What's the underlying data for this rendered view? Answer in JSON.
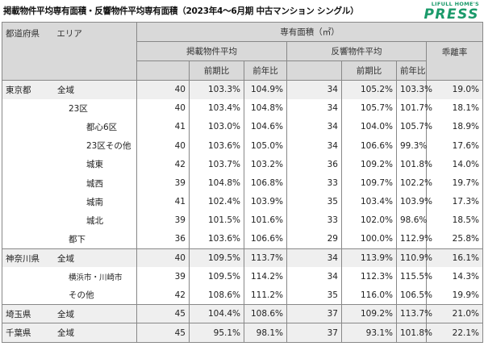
{
  "title": "掲載物件平均専有面積・反響物件平均専有面積（2023年4～6月期 中古マンション シングル）",
  "logo": {
    "top": "LIFULL HOME'S",
    "main": "PRESS"
  },
  "headers": {
    "pref": "都道府県",
    "area": "エリア",
    "main": "専有面積（㎡）",
    "listed": "掲載物件平均",
    "response": "反響物件平均",
    "divergence": "乖離率",
    "qoq": "前期比",
    "yoy": "前年比"
  },
  "rows": [
    {
      "pref": "東京都",
      "area": "全域",
      "level": 0,
      "listed": "40",
      "l_qoq": "103.3%",
      "l_yoy": "104.9%",
      "resp": "34",
      "r_qoq": "105.2%",
      "r_yoy": "103.3%",
      "div": "19.0%"
    },
    {
      "pref": "",
      "area": "23区",
      "level": 1,
      "listed": "40",
      "l_qoq": "103.4%",
      "l_yoy": "104.8%",
      "resp": "34",
      "r_qoq": "105.7%",
      "r_yoy": "101.7%",
      "div": "18.1%"
    },
    {
      "pref": "",
      "area": "都心6区",
      "level": 2,
      "listed": "41",
      "l_qoq": "103.0%",
      "l_yoy": "104.6%",
      "resp": "34",
      "r_qoq": "104.0%",
      "r_yoy": "105.7%",
      "div": "18.9%"
    },
    {
      "pref": "",
      "area": "23区その他",
      "level": 2,
      "listed": "40",
      "l_qoq": "103.6%",
      "l_yoy": "105.0%",
      "resp": "34",
      "r_qoq": "106.6%",
      "r_yoy": "99.3%",
      "div": "17.6%"
    },
    {
      "pref": "",
      "area": "城東",
      "level": 2,
      "listed": "42",
      "l_qoq": "103.7%",
      "l_yoy": "103.2%",
      "resp": "36",
      "r_qoq": "109.2%",
      "r_yoy": "101.8%",
      "div": "14.0%"
    },
    {
      "pref": "",
      "area": "城西",
      "level": 2,
      "listed": "39",
      "l_qoq": "104.8%",
      "l_yoy": "106.8%",
      "resp": "33",
      "r_qoq": "109.7%",
      "r_yoy": "102.2%",
      "div": "19.7%"
    },
    {
      "pref": "",
      "area": "城南",
      "level": 2,
      "listed": "41",
      "l_qoq": "102.4%",
      "l_yoy": "103.9%",
      "resp": "35",
      "r_qoq": "103.4%",
      "r_yoy": "103.9%",
      "div": "17.3%"
    },
    {
      "pref": "",
      "area": "城北",
      "level": 2,
      "listed": "39",
      "l_qoq": "101.5%",
      "l_yoy": "101.6%",
      "resp": "33",
      "r_qoq": "102.0%",
      "r_yoy": "98.6%",
      "div": "18.5%"
    },
    {
      "pref": "",
      "area": "都下",
      "level": 1,
      "listed": "36",
      "l_qoq": "103.6%",
      "l_yoy": "106.6%",
      "resp": "29",
      "r_qoq": "100.0%",
      "r_yoy": "112.9%",
      "div": "25.8%"
    },
    {
      "pref": "神奈川県",
      "area": "全域",
      "level": 0,
      "listed": "40",
      "l_qoq": "109.5%",
      "l_yoy": "113.7%",
      "resp": "34",
      "r_qoq": "113.9%",
      "r_yoy": "110.9%",
      "div": "16.1%"
    },
    {
      "pref": "",
      "area": "横浜市・川崎市",
      "level": 1,
      "listed": "39",
      "l_qoq": "109.5%",
      "l_yoy": "114.2%",
      "resp": "34",
      "r_qoq": "112.3%",
      "r_yoy": "115.5%",
      "div": "14.3%"
    },
    {
      "pref": "",
      "area": "その他",
      "level": 1,
      "listed": "42",
      "l_qoq": "108.6%",
      "l_yoy": "111.2%",
      "resp": "35",
      "r_qoq": "116.0%",
      "r_yoy": "106.5%",
      "div": "19.9%"
    },
    {
      "pref": "埼玉県",
      "area": "全域",
      "level": 0,
      "listed": "45",
      "l_qoq": "104.4%",
      "l_yoy": "108.6%",
      "resp": "37",
      "r_qoq": "109.2%",
      "r_yoy": "113.7%",
      "div": "21.0%"
    },
    {
      "pref": "千葉県",
      "area": "全域",
      "level": 0,
      "listed": "45",
      "l_qoq": "95.1%",
      "l_yoy": "98.1%",
      "resp": "37",
      "r_qoq": "93.1%",
      "r_yoy": "101.8%",
      "div": "22.1%"
    }
  ]
}
